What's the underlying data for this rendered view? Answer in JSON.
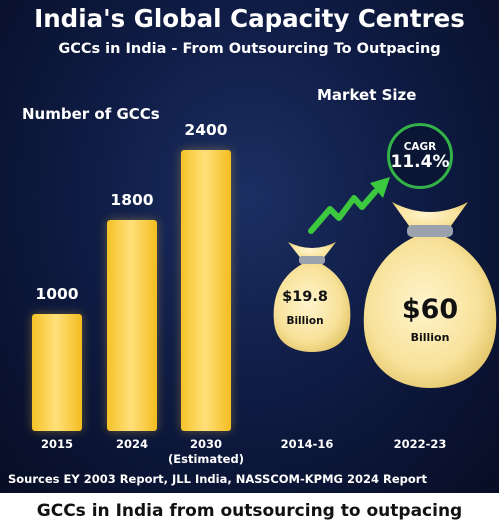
{
  "header": {
    "title": "India's Global Capacity Centres",
    "subtitle": "GCCs in India - From Outsourcing To Outpacing"
  },
  "sections": {
    "left_heading": "Number of GCCs",
    "right_heading": "Market Size"
  },
  "chart_data": [
    {
      "type": "bar",
      "title": "Number of GCCs",
      "categories": [
        "2015",
        "2024",
        "2030"
      ],
      "category_notes": [
        "",
        "",
        "(Estimated)"
      ],
      "values": [
        1000,
        1800,
        2400
      ],
      "value_labels": [
        "1000",
        "1800",
        "2400"
      ],
      "ylim": [
        0,
        2400
      ],
      "grid": false,
      "colors": {
        "bar": "#f5c227",
        "bar_highlight": "#ffe07a"
      }
    },
    {
      "type": "bubble",
      "title": "Market Size",
      "categories": [
        "2014-16",
        "2022-23"
      ],
      "values": [
        19.8,
        60
      ],
      "unit": "Billion",
      "value_labels": [
        "$19.8",
        "$60"
      ],
      "cagr_label": "CAGR",
      "cagr_value": "11.4%",
      "colors": {
        "bag": "#fde9a8",
        "tie": "#9aa3ad",
        "arrow": "#39c53d"
      }
    }
  ],
  "sources": "Sources EY 2003 Report, JLL India, NASSCOM-KPMG 2024 Report",
  "footer": {
    "caption": "GCCs in India from outsourcing to outpacing"
  }
}
